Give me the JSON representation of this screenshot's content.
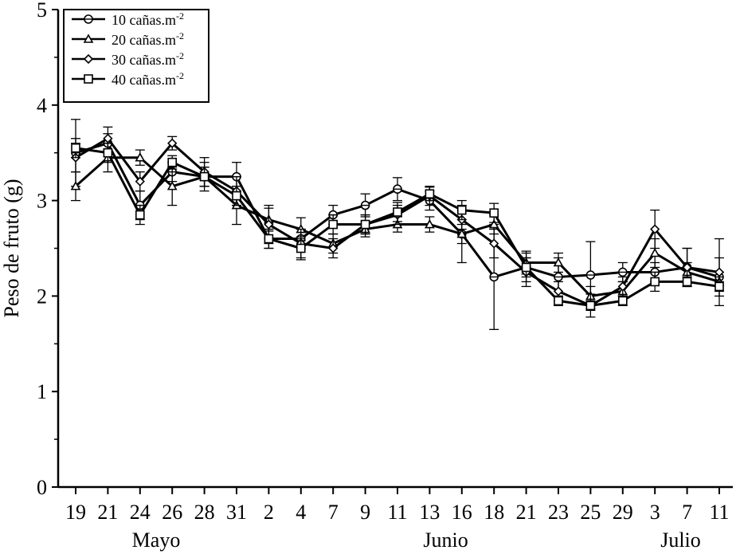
{
  "chart_data": {
    "type": "line",
    "ylabel": "Peso de fruto (g)",
    "xlabel": "",
    "ylim": [
      0,
      5
    ],
    "yticks": [
      "0",
      "1",
      "2",
      "3",
      "4",
      "5"
    ],
    "categories": [
      "19",
      "21",
      "24",
      "26",
      "28",
      "31",
      "2",
      "4",
      "7",
      "9",
      "11",
      "13",
      "16",
      "18",
      "21",
      "23",
      "25",
      "29",
      "3",
      "7",
      "11"
    ],
    "months": [
      {
        "label": "Mayo",
        "center_index": 2.5
      },
      {
        "label": "Junio",
        "center_index": 11.5
      },
      {
        "label": "Julio",
        "center_index": 18.8
      }
    ],
    "legend_position": "top-left",
    "series": [
      {
        "name": "10 cañas.m",
        "superscript": "-2",
        "marker": "circle-dash",
        "values": [
          3.5,
          3.6,
          2.95,
          3.3,
          3.25,
          3.25,
          2.6,
          2.6,
          2.85,
          2.95,
          3.12,
          3.0,
          2.65,
          2.2,
          2.3,
          2.2,
          2.22,
          2.25,
          2.25,
          2.3,
          2.2
        ],
        "errors": [
          0.35,
          0.1,
          0.15,
          0.1,
          0.1,
          0.15,
          0.1,
          0.1,
          0.1,
          0.12,
          0.12,
          0.1,
          0.3,
          0.55,
          0.15,
          0.2,
          0.35,
          0.1,
          0.1,
          0.2,
          0.2
        ]
      },
      {
        "name": "20 cañas.m",
        "superscript": "-2",
        "marker": "triangle",
        "values": [
          3.15,
          3.45,
          3.45,
          3.15,
          3.25,
          2.95,
          2.8,
          2.7,
          2.55,
          2.7,
          2.75,
          2.75,
          2.65,
          2.75,
          2.35,
          2.35,
          2.0,
          2.05,
          2.45,
          2.25,
          2.15
        ],
        "errors": [
          0.15,
          0.15,
          0.08,
          0.2,
          0.15,
          0.2,
          0.12,
          0.12,
          0.1,
          0.08,
          0.08,
          0.08,
          0.1,
          0.1,
          0.12,
          0.1,
          0.1,
          0.1,
          0.15,
          0.1,
          0.1
        ]
      },
      {
        "name": "30 cañas.m",
        "superscript": "-2",
        "marker": "diamond",
        "values": [
          3.45,
          3.65,
          3.2,
          3.6,
          3.3,
          3.1,
          2.75,
          2.55,
          2.5,
          2.75,
          2.85,
          3.05,
          2.8,
          2.55,
          2.25,
          2.05,
          1.9,
          2.1,
          2.7,
          2.3,
          2.25
        ],
        "errors": [
          0.15,
          0.12,
          0.1,
          0.07,
          0.15,
          0.15,
          0.2,
          0.15,
          0.1,
          0.1,
          0.1,
          0.1,
          0.1,
          0.15,
          0.15,
          0.1,
          0.12,
          0.1,
          0.2,
          0.2,
          0.35
        ]
      },
      {
        "name": "40 cañas.m",
        "superscript": "-2",
        "marker": "square",
        "values": [
          3.55,
          3.5,
          2.85,
          3.4,
          3.25,
          3.05,
          2.6,
          2.5,
          2.75,
          2.75,
          2.88,
          3.07,
          2.9,
          2.87,
          2.3,
          1.95,
          1.9,
          1.95,
          2.15,
          2.15,
          2.1
        ],
        "errors": [
          0.1,
          0.1,
          0.1,
          0.07,
          0.1,
          0.1,
          0.1,
          0.12,
          0.1,
          0.1,
          0.1,
          0.07,
          0.1,
          0.1,
          0.1,
          0.05,
          0.05,
          0.05,
          0.1,
          0.05,
          0.05
        ]
      }
    ]
  }
}
